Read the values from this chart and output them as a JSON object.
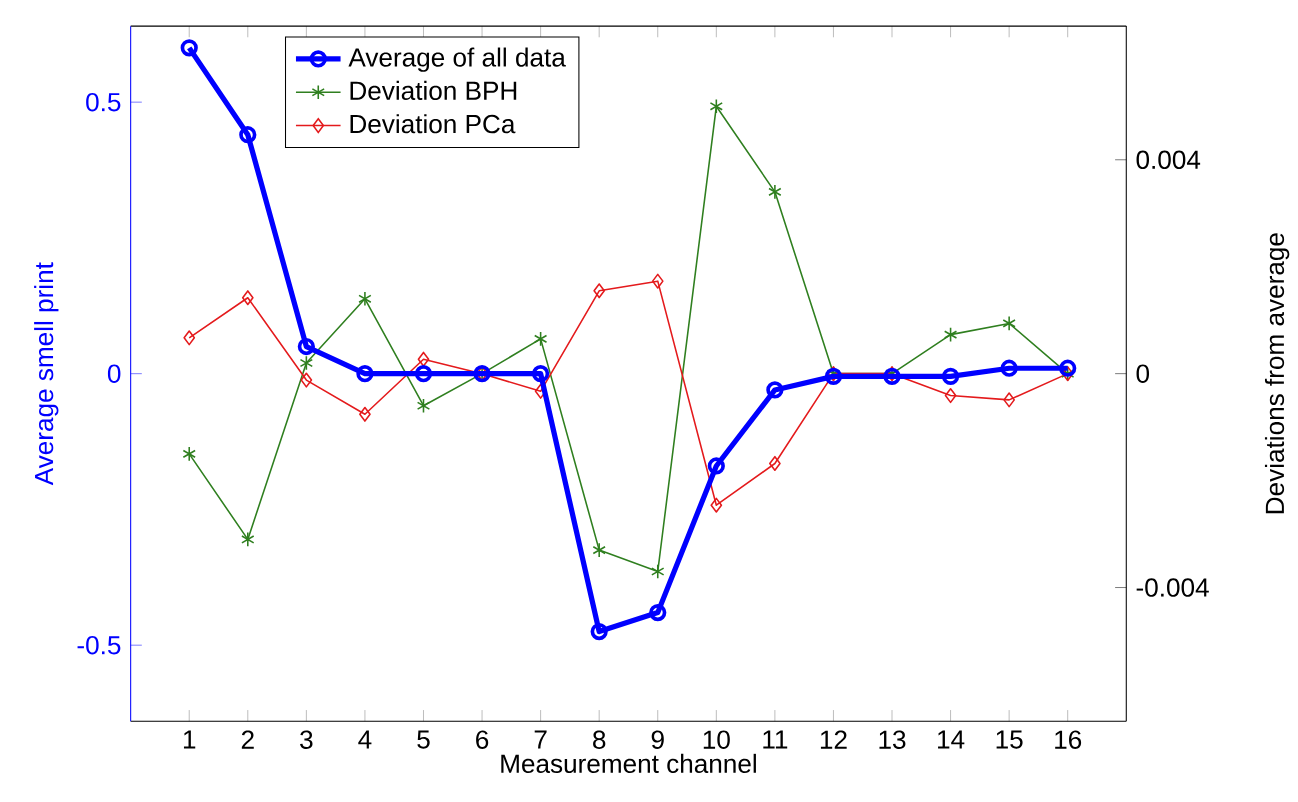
{
  "chart_data": {
    "type": "line",
    "xlabel": "Measurement channel",
    "ylabel": "Average smell print",
    "y2label": "Deviations from average",
    "x": [
      1,
      2,
      3,
      4,
      5,
      6,
      7,
      8,
      9,
      10,
      11,
      12,
      13,
      14,
      15,
      16
    ],
    "xlim": [
      0,
      17
    ],
    "xticks": [
      1,
      2,
      3,
      4,
      5,
      6,
      7,
      8,
      9,
      10,
      11,
      12,
      13,
      14,
      15,
      16
    ],
    "ylim": [
      -0.64,
      0.64
    ],
    "yticks": [
      -0.5,
      0,
      0.5
    ],
    "y2lim": [
      -0.0065,
      0.0065
    ],
    "y2ticks": [
      -0.004,
      0,
      0.004
    ],
    "legend": "top left",
    "series": [
      {
        "name": "Average of all data",
        "color": "#0000ff",
        "marker": "circle",
        "values": [
          0.6,
          0.44,
          0.05,
          0,
          0,
          0,
          0,
          -0.475,
          -0.44,
          -0.17,
          -0.03,
          -0.005,
          -0.005,
          -0.005,
          0.01,
          0.01
        ]
      },
      {
        "name": "Deviation BPH",
        "color": "#2f7f1f",
        "marker": "cross",
        "axis": "y2",
        "values": [
          -0.0015,
          -0.0031,
          0.0002,
          0.0014,
          -0.0006,
          0,
          0.00065,
          -0.0033,
          -0.0037,
          0.005,
          0.0034,
          0,
          0,
          0.00073,
          0.00094,
          0
        ]
      },
      {
        "name": "Deviation PCa",
        "color": "#e41a1c",
        "marker": "diamond",
        "axis": "y2",
        "values": [
          0.00067,
          0.00142,
          -0.00012,
          -0.00076,
          0.00027,
          0,
          -0.00033,
          0.00155,
          0.00173,
          -0.00246,
          -0.00168,
          0,
          0,
          -0.00041,
          -0.00049,
          0
        ]
      }
    ]
  }
}
